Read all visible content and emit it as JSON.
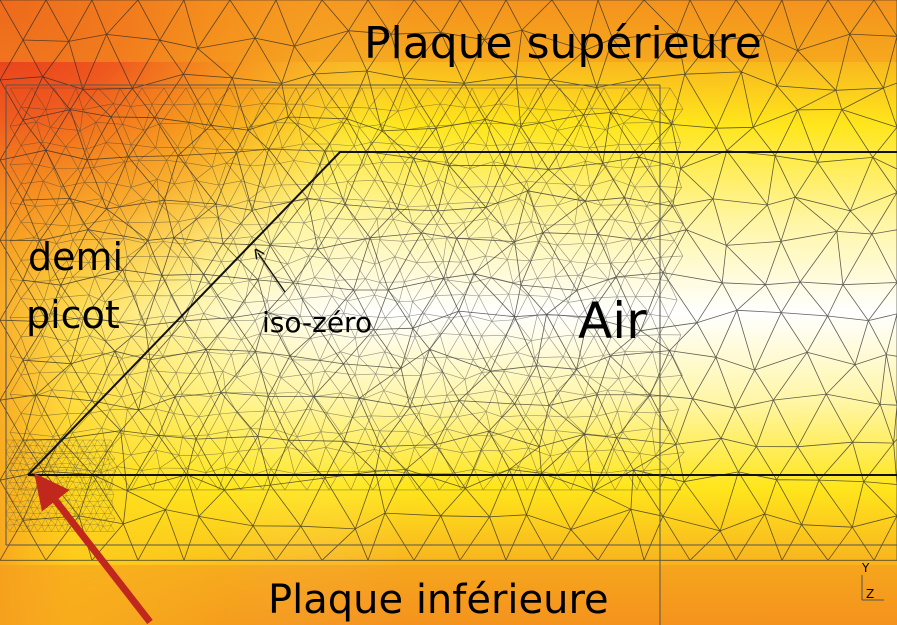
{
  "labels": {
    "top_plate": "Plaque supérieure",
    "bottom_plate": "Plaque inférieure",
    "half_pin_line1": "demi",
    "half_pin_line2": "picot",
    "iso_zero": "iso-zéro",
    "air": "Air",
    "axis_y": "Y",
    "axis_z": "Z"
  },
  "colors": {
    "hot": "#e8321e",
    "orange": "#f48a1e",
    "amber": "#f8b41e",
    "yellow": "#ffe61c",
    "pale_yellow": "#fff6a8",
    "white": "#ffffff",
    "outline": "#111111",
    "arrow": "#c0281e",
    "mesh": "#3a3a3a"
  }
}
